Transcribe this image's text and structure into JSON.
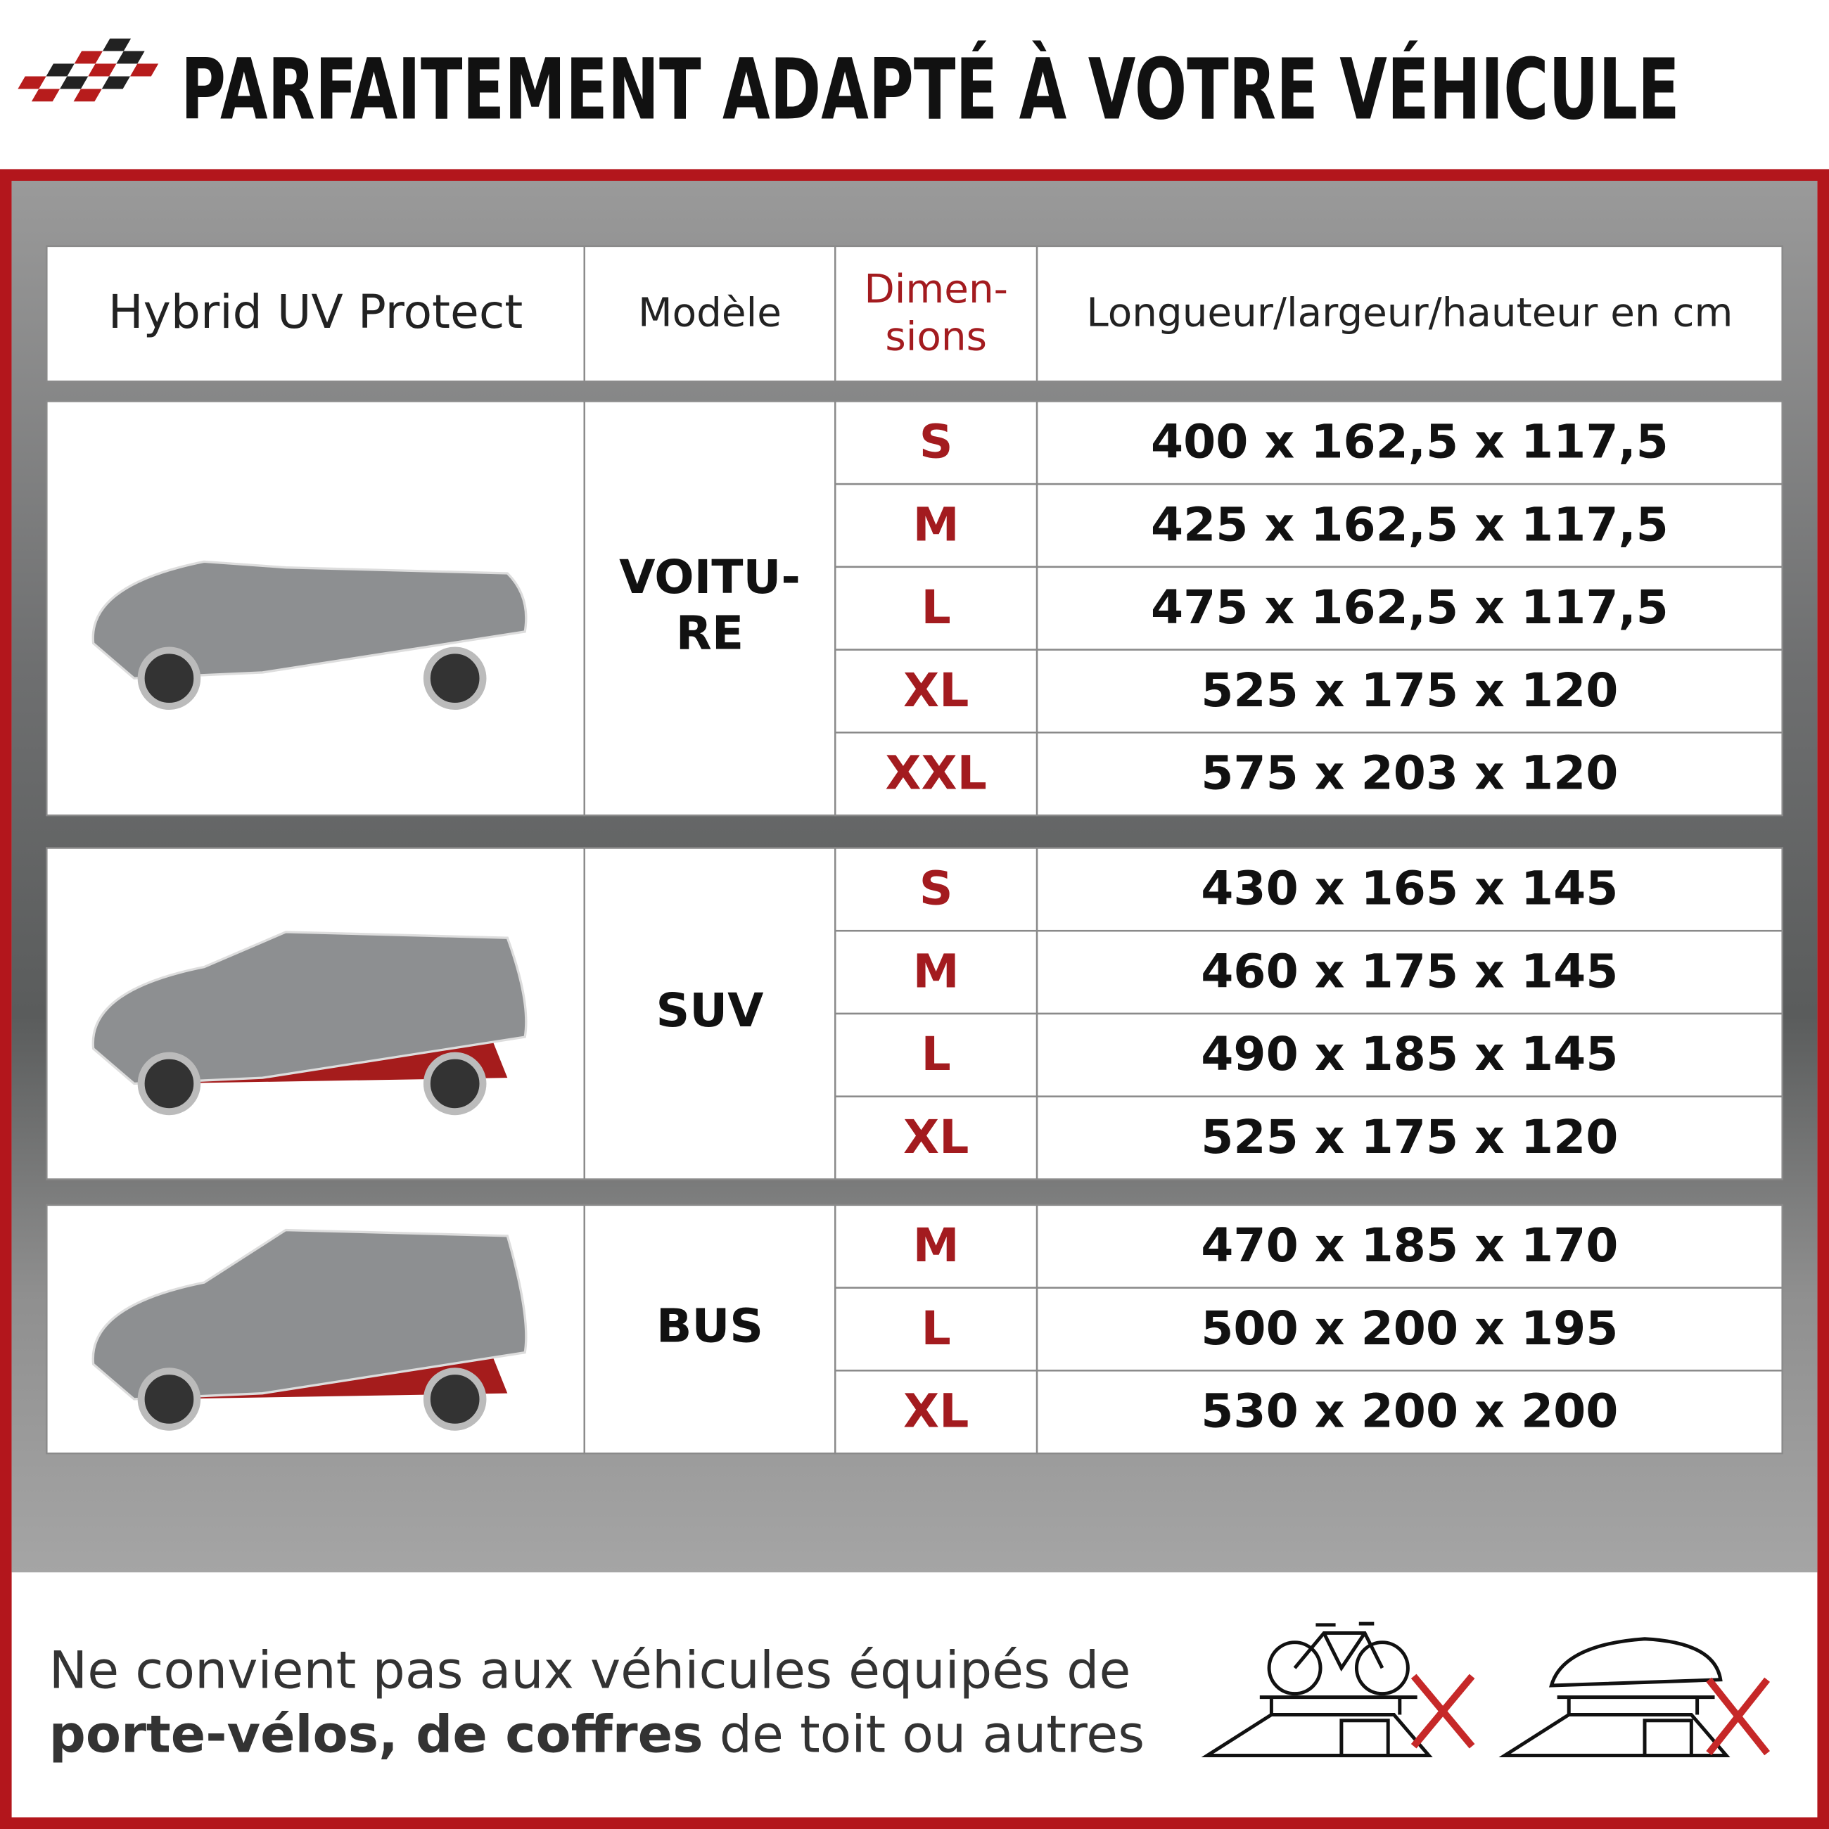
{
  "header": {
    "title": "PARFAITEMENT ADAPTÉ À VOTRE VÉHICULE"
  },
  "table": {
    "columns": [
      "Hybrid UV Protect",
      "Modèle",
      "Dimen-\nsions",
      "Longueur/largeur/hauteur en cm"
    ],
    "groups": [
      {
        "model": "VOITU-\nRE",
        "rows": [
          [
            "S",
            "400 x 162,5 x 117,5"
          ],
          [
            "M",
            "425 x 162,5 x 117,5"
          ],
          [
            "L",
            "475 x 162,5 x 117,5"
          ],
          [
            "XL",
            "525 x 175 x 120"
          ],
          [
            "XXL",
            "575 x 203 x 120"
          ]
        ]
      },
      {
        "model": "SUV",
        "rows": [
          [
            "S",
            "430 x 165 x 145"
          ],
          [
            "M",
            "460 x 175 x 145"
          ],
          [
            "L",
            "490 x 185 x 145"
          ],
          [
            "XL",
            "525 x 175 x 120"
          ]
        ]
      },
      {
        "model": "BUS",
        "rows": [
          [
            "M",
            "470 x 185 x 170"
          ],
          [
            "L",
            "500 x 200 x 195"
          ],
          [
            "XL",
            "530 x 200 x 200"
          ]
        ]
      }
    ]
  },
  "footer": {
    "line1": "Ne convient pas aux véhicules équipés de",
    "line2_bold": "porte-vélos, de coffres",
    "line2_rest": " de toit ou autres"
  }
}
